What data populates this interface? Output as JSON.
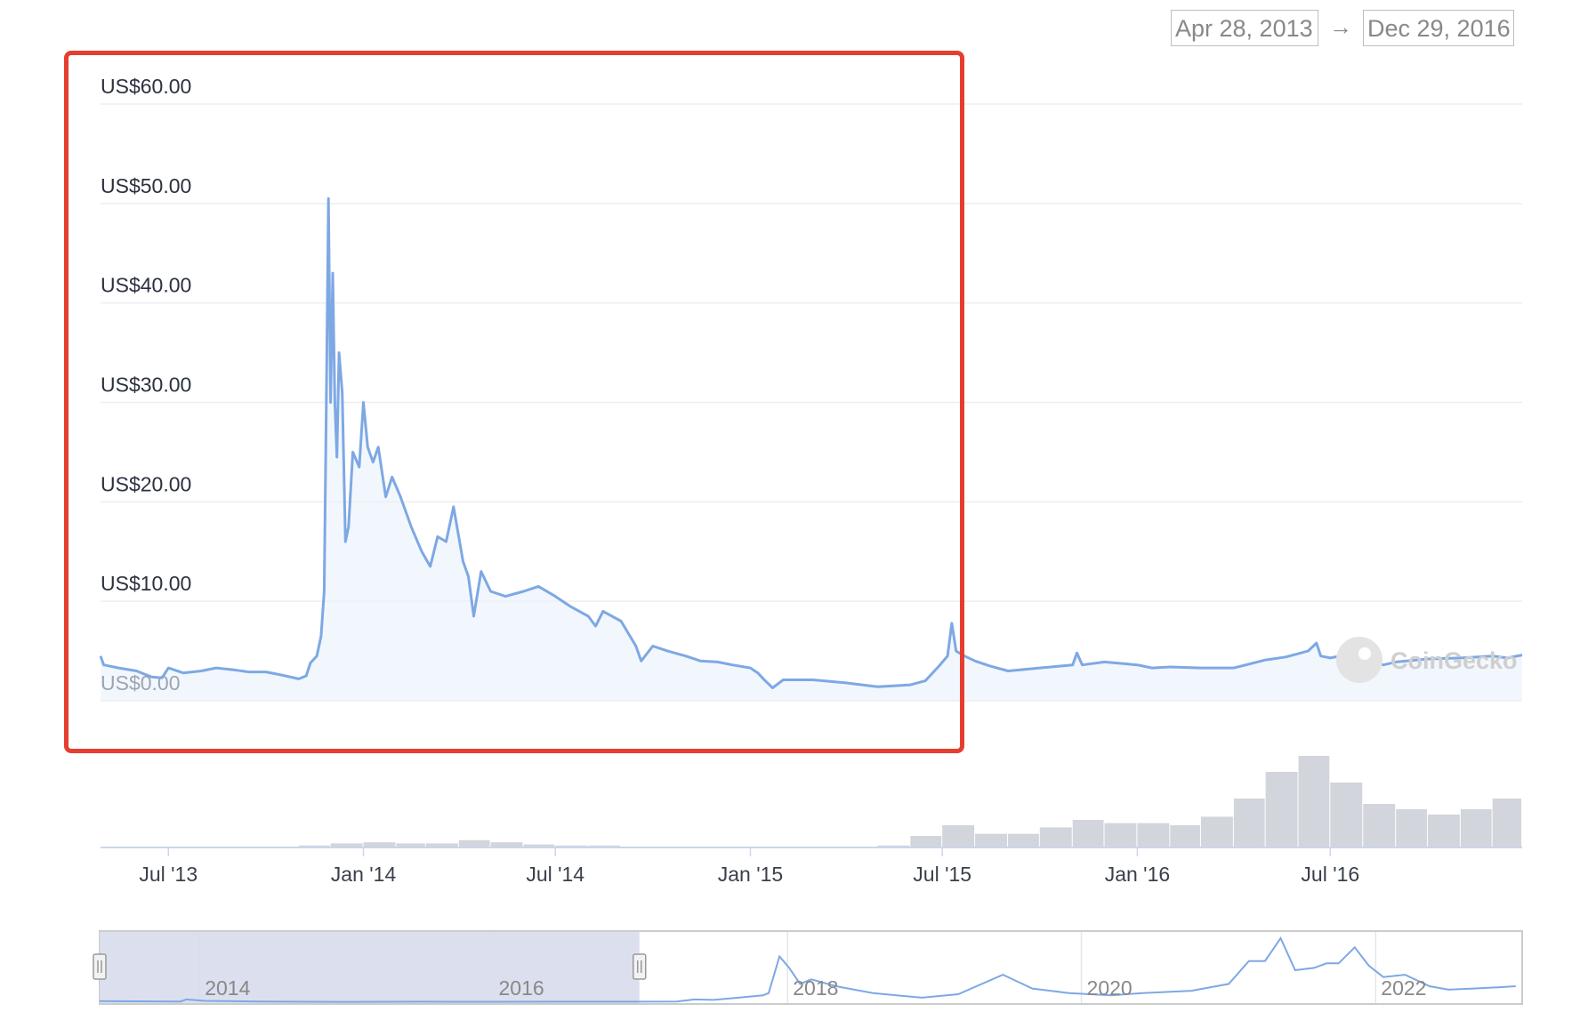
{
  "date_range": {
    "from": "Apr 28, 2013",
    "to": "Dec 29, 2016",
    "arrow": "→"
  },
  "watermark": {
    "text": "CoinGecko",
    "icon": "coingecko-gecko-icon"
  },
  "colors": {
    "line": "#7ea8e4",
    "area_fill": "#eaf1fb",
    "grid": "#eeeeee",
    "volume": "#d2d5db",
    "navigator_mask": "#d8ddec",
    "highlight": "#e53e2e"
  },
  "chart_data": [
    {
      "type": "line",
      "y_axis": {
        "labels": [
          "US$0.00",
          "US$10.00",
          "US$20.00",
          "US$30.00",
          "US$40.00",
          "US$50.00",
          "US$60.00"
        ],
        "ylim": [
          0,
          60
        ]
      },
      "x_axis": {
        "labels": [
          "Jul '13",
          "Jan '14",
          "Jul '14",
          "Jan '15",
          "Jul '15",
          "Jan '16",
          "Jul '16"
        ],
        "range": [
          "2013-04-28",
          "2016-12-29"
        ]
      },
      "grid": true,
      "legend": "none",
      "series": [
        {
          "points": [
            [
              "2013-04-28",
              4.5
            ],
            [
              "2013-05-01",
              3.6
            ],
            [
              "2013-05-15",
              3.3
            ],
            [
              "2013-06-01",
              3.0
            ],
            [
              "2013-06-15",
              2.4
            ],
            [
              "2013-06-25",
              2.3
            ],
            [
              "2013-07-01",
              3.3
            ],
            [
              "2013-07-15",
              2.8
            ],
            [
              "2013-08-01",
              3.0
            ],
            [
              "2013-08-15",
              3.3
            ],
            [
              "2013-09-01",
              3.1
            ],
            [
              "2013-09-15",
              2.9
            ],
            [
              "2013-10-01",
              2.9
            ],
            [
              "2013-10-15",
              2.6
            ],
            [
              "2013-11-01",
              2.2
            ],
            [
              "2013-11-08",
              2.5
            ],
            [
              "2013-11-12",
              3.8
            ],
            [
              "2013-11-18",
              4.5
            ],
            [
              "2013-11-22",
              6.5
            ],
            [
              "2013-11-25",
              11.0
            ],
            [
              "2013-11-27",
              30.0
            ],
            [
              "2013-11-29",
              50.5
            ],
            [
              "2013-12-01",
              30.0
            ],
            [
              "2013-12-03",
              43.0
            ],
            [
              "2013-12-05",
              30.0
            ],
            [
              "2013-12-07",
              24.5
            ],
            [
              "2013-12-09",
              35.0
            ],
            [
              "2013-12-12",
              31.0
            ],
            [
              "2013-12-15",
              16.0
            ],
            [
              "2013-12-18",
              17.5
            ],
            [
              "2013-12-22",
              25.0
            ],
            [
              "2013-12-28",
              23.5
            ],
            [
              "2014-01-01",
              30.0
            ],
            [
              "2014-01-05",
              25.5
            ],
            [
              "2014-01-10",
              24.0
            ],
            [
              "2014-01-15",
              25.5
            ],
            [
              "2014-01-22",
              20.5
            ],
            [
              "2014-01-28",
              22.5
            ],
            [
              "2014-02-05",
              20.5
            ],
            [
              "2014-02-15",
              17.5
            ],
            [
              "2014-02-25",
              15.0
            ],
            [
              "2014-03-05",
              13.5
            ],
            [
              "2014-03-12",
              16.5
            ],
            [
              "2014-03-20",
              16.0
            ],
            [
              "2014-03-27",
              19.5
            ],
            [
              "2014-04-05",
              14.0
            ],
            [
              "2014-04-10",
              12.5
            ],
            [
              "2014-04-15",
              8.5
            ],
            [
              "2014-04-22",
              13.0
            ],
            [
              "2014-05-01",
              11.0
            ],
            [
              "2014-05-15",
              10.5
            ],
            [
              "2014-06-01",
              11.0
            ],
            [
              "2014-06-15",
              11.5
            ],
            [
              "2014-07-01",
              10.5
            ],
            [
              "2014-07-15",
              9.5
            ],
            [
              "2014-08-01",
              8.5
            ],
            [
              "2014-08-08",
              7.5
            ],
            [
              "2014-08-15",
              9.0
            ],
            [
              "2014-09-01",
              8.0
            ],
            [
              "2014-09-15",
              5.5
            ],
            [
              "2014-09-20",
              4.0
            ],
            [
              "2014-10-01",
              5.5
            ],
            [
              "2014-10-15",
              5.0
            ],
            [
              "2014-11-01",
              4.5
            ],
            [
              "2014-11-15",
              4.0
            ],
            [
              "2014-12-01",
              3.9
            ],
            [
              "2014-12-15",
              3.6
            ],
            [
              "2015-01-01",
              3.3
            ],
            [
              "2015-01-08",
              2.8
            ],
            [
              "2015-01-15",
              2.0
            ],
            [
              "2015-01-22",
              1.3
            ],
            [
              "2015-02-01",
              2.1
            ],
            [
              "2015-03-01",
              2.1
            ],
            [
              "2015-04-01",
              1.8
            ],
            [
              "2015-05-01",
              1.4
            ],
            [
              "2015-06-01",
              1.6
            ],
            [
              "2015-06-15",
              2.0
            ],
            [
              "2015-06-28",
              3.5
            ],
            [
              "2015-07-06",
              4.5
            ],
            [
              "2015-07-10",
              7.8
            ],
            [
              "2015-07-14",
              5.0
            ],
            [
              "2015-07-22",
              4.5
            ],
            [
              "2015-08-01",
              4.0
            ],
            [
              "2015-08-15",
              3.5
            ],
            [
              "2015-09-01",
              3.0
            ],
            [
              "2015-10-01",
              3.3
            ],
            [
              "2015-11-01",
              3.6
            ],
            [
              "2015-11-05",
              4.8
            ],
            [
              "2015-11-10",
              3.6
            ],
            [
              "2015-12-01",
              3.9
            ],
            [
              "2016-01-01",
              3.6
            ],
            [
              "2016-01-15",
              3.3
            ],
            [
              "2016-02-01",
              3.4
            ],
            [
              "2016-03-01",
              3.3
            ],
            [
              "2016-04-01",
              3.3
            ],
            [
              "2016-05-01",
              4.1
            ],
            [
              "2016-05-20",
              4.4
            ],
            [
              "2016-06-10",
              5.0
            ],
            [
              "2016-06-18",
              5.8
            ],
            [
              "2016-06-22",
              4.5
            ],
            [
              "2016-07-01",
              4.3
            ],
            [
              "2016-07-15",
              4.6
            ],
            [
              "2016-08-01",
              4.3
            ],
            [
              "2016-08-20",
              3.6
            ],
            [
              "2016-09-01",
              3.9
            ],
            [
              "2016-10-01",
              4.2
            ],
            [
              "2016-11-01",
              4.3
            ],
            [
              "2016-12-01",
              4.5
            ],
            [
              "2016-12-15",
              4.3
            ],
            [
              "2016-12-29",
              4.6
            ]
          ]
        }
      ]
    },
    {
      "type": "bar",
      "title": "",
      "categories": [
        "2013-05",
        "2013-06",
        "2013-07",
        "2013-08",
        "2013-09",
        "2013-10",
        "2013-11",
        "2013-12",
        "2014-01",
        "2014-02",
        "2014-03",
        "2014-04",
        "2014-05",
        "2014-06",
        "2014-07",
        "2014-08",
        "2014-09",
        "2014-10",
        "2014-11",
        "2014-12",
        "2015-01",
        "2015-02",
        "2015-03",
        "2015-04",
        "2015-05",
        "2015-06",
        "2015-07",
        "2015-08",
        "2015-09",
        "2015-10",
        "2015-11",
        "2015-12",
        "2016-01",
        "2016-02",
        "2016-03",
        "2016-04",
        "2016-05",
        "2016-06",
        "2016-07",
        "2016-08",
        "2016-09",
        "2016-10",
        "2016-11",
        "2016-12"
      ],
      "values": [
        0.0,
        0.0,
        0.0,
        0.0,
        0.0,
        0.0,
        0.01,
        0.03,
        0.04,
        0.03,
        0.03,
        0.06,
        0.04,
        0.02,
        0.01,
        0.01,
        0.0,
        0.0,
        0.0,
        0.0,
        0.0,
        0.0,
        0.0,
        0.0,
        0.01,
        0.1,
        0.2,
        0.12,
        0.12,
        0.18,
        0.25,
        0.22,
        0.22,
        0.2,
        0.28,
        0.45,
        0.7,
        0.85,
        0.6,
        0.4,
        0.35,
        0.3,
        0.35,
        0.45
      ]
    },
    {
      "type": "line",
      "x_axis": {
        "labels": [
          "2014",
          "2016",
          "2018",
          "2020",
          "2022"
        ]
      },
      "selected_range": [
        "2013-04-28",
        "2016-12-29"
      ],
      "series": [
        {
          "points": [
            [
              "2013-04-28",
              4.5
            ],
            [
              "2013-11-15",
              3.0
            ],
            [
              "2013-11-29",
              12.0
            ],
            [
              "2014-01-15",
              6.0
            ],
            [
              "2014-06-01",
              3.0
            ],
            [
              "2015-01-01",
              1.5
            ],
            [
              "2015-07-10",
              2.5
            ],
            [
              "2016-01-01",
              1.8
            ],
            [
              "2016-06-15",
              2.5
            ],
            [
              "2017-01-01",
              2.5
            ],
            [
              "2017-04-01",
              3.0
            ],
            [
              "2017-05-15",
              12.0
            ],
            [
              "2017-07-01",
              10.0
            ],
            [
              "2017-09-01",
              20.0
            ],
            [
              "2017-11-01",
              30.0
            ],
            [
              "2017-11-15",
              40.0
            ],
            [
              "2017-12-12",
              200.0
            ],
            [
              "2018-01-05",
              150.0
            ],
            [
              "2018-02-01",
              80.0
            ],
            [
              "2018-03-01",
              100.0
            ],
            [
              "2018-05-01",
              70.0
            ],
            [
              "2018-08-01",
              40.0
            ],
            [
              "2018-12-01",
              20.0
            ],
            [
              "2019-03-01",
              35.0
            ],
            [
              "2019-06-20",
              120.0
            ],
            [
              "2019-09-01",
              60.0
            ],
            [
              "2019-12-01",
              40.0
            ],
            [
              "2020-03-15",
              30.0
            ],
            [
              "2020-06-01",
              40.0
            ],
            [
              "2020-10-01",
              50.0
            ],
            [
              "2021-01-01",
              80.0
            ],
            [
              "2021-02-20",
              180.0
            ],
            [
              "2021-04-01",
              180.0
            ],
            [
              "2021-05-10",
              280.0
            ],
            [
              "2021-06-15",
              140.0
            ],
            [
              "2021-08-01",
              150.0
            ],
            [
              "2021-09-01",
              170.0
            ],
            [
              "2021-10-01",
              170.0
            ],
            [
              "2021-11-10",
              240.0
            ],
            [
              "2021-12-15",
              160.0
            ],
            [
              "2022-01-20",
              110.0
            ],
            [
              "2022-03-15",
              120.0
            ],
            [
              "2022-05-15",
              70.0
            ],
            [
              "2022-07-01",
              55.0
            ],
            [
              "2022-11-01",
              65.0
            ],
            [
              "2022-12-15",
              70.0
            ]
          ]
        }
      ]
    }
  ]
}
